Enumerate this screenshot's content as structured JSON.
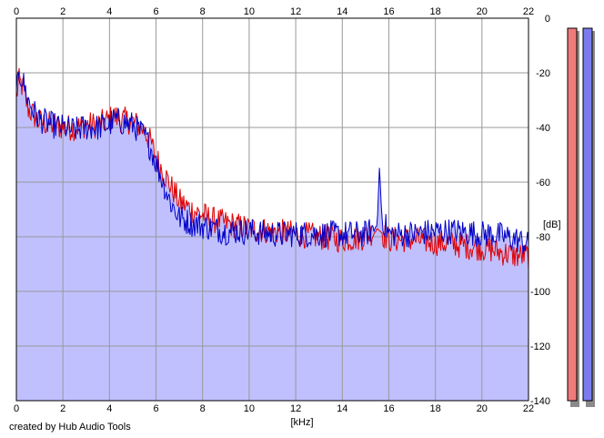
{
  "footer": {
    "credit": "created by Hub Audio Tools"
  },
  "meters": {
    "left_color": "#f07b7b",
    "right_color": "#7b7bf0"
  },
  "chart_data": {
    "type": "line",
    "title": "",
    "xlabel": "[kHz]",
    "ylabel": "[dB]",
    "xlim": [
      0,
      22
    ],
    "ylim": [
      -140,
      0
    ],
    "x_ticks": [
      0,
      2,
      4,
      6,
      8,
      10,
      12,
      14,
      16,
      18,
      20,
      22
    ],
    "y_ticks": [
      0,
      -20,
      -40,
      -60,
      -80,
      -100,
      -120,
      -140
    ],
    "grid": true,
    "fill_color": "#c0c0ff",
    "series": [
      {
        "color": "#e00000",
        "x": [
          0,
          0.1,
          0.25,
          0.5,
          0.8,
          1,
          1.5,
          2,
          2.5,
          3,
          3.5,
          4,
          4.2,
          4.5,
          5,
          5.5,
          5.8,
          6,
          6.3,
          6.6,
          7,
          7.5,
          8,
          8.5,
          9,
          9.5,
          10,
          11,
          12,
          13,
          14,
          15,
          15.5,
          16,
          17,
          18,
          19,
          20,
          20.5,
          21,
          21.5,
          22
        ],
        "y": [
          -29,
          -23,
          -25,
          -33,
          -36,
          -38,
          -39,
          -40,
          -40,
          -39,
          -39,
          -37,
          -36,
          -37,
          -38,
          -41,
          -46,
          -51,
          -56,
          -61,
          -67,
          -70,
          -72,
          -74,
          -75,
          -76,
          -77,
          -78,
          -79,
          -80,
          -81,
          -80,
          -77,
          -81,
          -81,
          -82,
          -83,
          -84,
          -85,
          -86,
          -87,
          -87
        ]
      },
      {
        "color": "#0000c8",
        "x": [
          0,
          0.1,
          0.25,
          0.5,
          0.8,
          1,
          1.5,
          2,
          2.5,
          3,
          3.5,
          4,
          4.2,
          4.5,
          5,
          5.5,
          5.8,
          6,
          6.3,
          6.6,
          7,
          7.5,
          8,
          8.5,
          9,
          9.5,
          10,
          11,
          12,
          13,
          14,
          15,
          15.5,
          15.6,
          15.7,
          16,
          17,
          18,
          19,
          20,
          20.5,
          21,
          21.5,
          22
        ],
        "y": [
          -30,
          -20,
          -22,
          -30,
          -35,
          -37,
          -39,
          -40,
          -41,
          -40,
          -40,
          -39,
          -37,
          -38,
          -39,
          -43,
          -48,
          -53,
          -60,
          -67,
          -73,
          -75,
          -76,
          -77,
          -78,
          -78,
          -78,
          -79,
          -79,
          -79,
          -79,
          -79,
          -76,
          -54,
          -73,
          -79,
          -79,
          -78,
          -78,
          -79,
          -79,
          -80,
          -81,
          -83
        ]
      }
    ]
  }
}
